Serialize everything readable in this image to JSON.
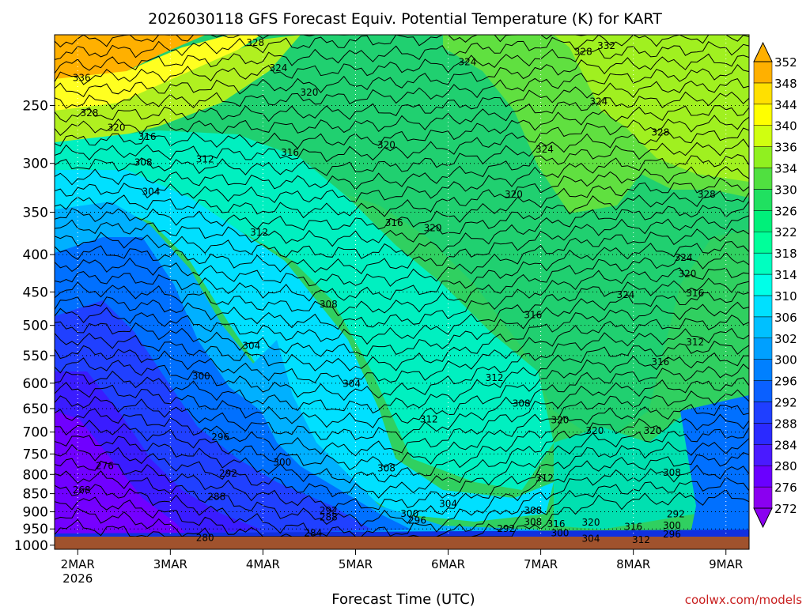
{
  "chart_data": {
    "type": "heatmap",
    "title": "2026030118 GFS Forecast Equiv. Potential Temperature (K) for KART",
    "xlabel": "Forecast Time (UTC)",
    "ylabel": "",
    "y_axis": {
      "scale": "log",
      "inverted": true,
      "ticks": [
        250,
        300,
        350,
        400,
        450,
        500,
        550,
        600,
        650,
        700,
        750,
        800,
        850,
        900,
        950,
        1000
      ],
      "range": [
        200,
        1013
      ]
    },
    "x_axis": {
      "range": [
        0,
        180
      ],
      "ticks": [
        {
          "hour": 6,
          "label": "2MAR",
          "sublabel": "2026"
        },
        {
          "hour": 30,
          "label": "3MAR"
        },
        {
          "hour": 54,
          "label": "4MAR"
        },
        {
          "hour": 78,
          "label": "5MAR"
        },
        {
          "hour": 102,
          "label": "6MAR"
        },
        {
          "hour": 126,
          "label": "7MAR"
        },
        {
          "hour": 150,
          "label": "8MAR"
        },
        {
          "hour": 174,
          "label": "9MAR"
        }
      ]
    },
    "grid": true,
    "colorbar": {
      "levels": [
        272,
        276,
        280,
        284,
        288,
        292,
        296,
        300,
        302,
        306,
        310,
        314,
        318,
        322,
        326,
        330,
        334,
        336,
        340,
        344,
        348,
        352
      ],
      "colors": [
        "#8a00f0",
        "#6a00ff",
        "#4a1aff",
        "#2a2aff",
        "#1f3fff",
        "#0a60ff",
        "#0080ff",
        "#00a0ff",
        "#00c0ff",
        "#00e0ff",
        "#00ffe8",
        "#00ffc0",
        "#00ff9a",
        "#00f07a",
        "#20e060",
        "#50e040",
        "#90f020",
        "#d0ff10",
        "#ffff00",
        "#ffe000",
        "#ffb000"
      ]
    },
    "contour_labels": [
      {
        "value": "328",
        "hour": 52,
        "p": 205
      },
      {
        "value": "324",
        "hour": 58,
        "p": 222
      },
      {
        "value": "320",
        "hour": 66,
        "p": 240
      },
      {
        "value": "336",
        "hour": 7,
        "p": 229
      },
      {
        "value": "328",
        "hour": 9,
        "p": 256
      },
      {
        "value": "320",
        "hour": 16,
        "p": 268
      },
      {
        "value": "316",
        "hour": 24,
        "p": 276
      },
      {
        "value": "316",
        "hour": 61,
        "p": 290
      },
      {
        "value": "312",
        "hour": 39,
        "p": 296
      },
      {
        "value": "308",
        "hour": 23,
        "p": 299
      },
      {
        "value": "304",
        "hour": 25,
        "p": 328
      },
      {
        "value": "312",
        "hour": 53,
        "p": 373
      },
      {
        "value": "316",
        "hour": 88,
        "p": 362
      },
      {
        "value": "320",
        "hour": 98,
        "p": 368
      },
      {
        "value": "320",
        "hour": 86,
        "p": 283
      },
      {
        "value": "324",
        "hour": 107,
        "p": 218
      },
      {
        "value": "328",
        "hour": 137,
        "p": 211
      },
      {
        "value": "332",
        "hour": 143,
        "p": 207
      },
      {
        "value": "324",
        "hour": 127,
        "p": 287
      },
      {
        "value": "320",
        "hour": 119,
        "p": 331
      },
      {
        "value": "324",
        "hour": 141,
        "p": 247
      },
      {
        "value": "328",
        "hour": 157,
        "p": 272
      },
      {
        "value": "328",
        "hour": 169,
        "p": 331
      },
      {
        "value": "324",
        "hour": 163,
        "p": 404
      },
      {
        "value": "320",
        "hour": 164,
        "p": 425
      },
      {
        "value": "316",
        "hour": 166,
        "p": 452
      },
      {
        "value": "324",
        "hour": 148,
        "p": 454
      },
      {
        "value": "312",
        "hour": 166,
        "p": 527
      },
      {
        "value": "316",
        "hour": 157,
        "p": 561
      },
      {
        "value": "316",
        "hour": 124,
        "p": 484
      },
      {
        "value": "308",
        "hour": 71,
        "p": 468
      },
      {
        "value": "304",
        "hour": 51,
        "p": 533
      },
      {
        "value": "304",
        "hour": 77,
        "p": 601
      },
      {
        "value": "300",
        "hour": 38,
        "p": 587
      },
      {
        "value": "312",
        "hour": 114,
        "p": 590
      },
      {
        "value": "312",
        "hour": 97,
        "p": 672
      },
      {
        "value": "308",
        "hour": 121,
        "p": 640
      },
      {
        "value": "320",
        "hour": 131,
        "p": 674
      },
      {
        "value": "320",
        "hour": 140,
        "p": 697
      },
      {
        "value": "320",
        "hour": 155,
        "p": 697
      },
      {
        "value": "296",
        "hour": 43,
        "p": 711
      },
      {
        "value": "300",
        "hour": 59,
        "p": 770
      },
      {
        "value": "292",
        "hour": 45,
        "p": 797
      },
      {
        "value": "308",
        "hour": 86,
        "p": 785
      },
      {
        "value": "312",
        "hour": 127,
        "p": 809
      },
      {
        "value": "308",
        "hour": 160,
        "p": 795
      },
      {
        "value": "276",
        "hour": 13,
        "p": 779
      },
      {
        "value": "268",
        "hour": 7,
        "p": 840
      },
      {
        "value": "288",
        "hour": 42,
        "p": 858
      },
      {
        "value": "304",
        "hour": 102,
        "p": 878
      },
      {
        "value": "308",
        "hour": 124,
        "p": 897
      },
      {
        "value": "292",
        "hour": 71,
        "p": 896
      },
      {
        "value": "288",
        "hour": 71,
        "p": 916
      },
      {
        "value": "300",
        "hour": 92,
        "p": 906
      },
      {
        "value": "296",
        "hour": 94,
        "p": 925
      },
      {
        "value": "308",
        "hour": 124,
        "p": 929
      },
      {
        "value": "316",
        "hour": 130,
        "p": 935
      },
      {
        "value": "320",
        "hour": 139,
        "p": 931
      },
      {
        "value": "316",
        "hour": 150,
        "p": 944
      },
      {
        "value": "300",
        "hour": 160,
        "p": 940
      },
      {
        "value": "292",
        "hour": 161,
        "p": 907
      },
      {
        "value": "292",
        "hour": 117,
        "p": 950
      },
      {
        "value": "300",
        "hour": 131,
        "p": 963
      },
      {
        "value": "296",
        "hour": 160,
        "p": 966
      },
      {
        "value": "284",
        "hour": 67,
        "p": 963
      },
      {
        "value": "280",
        "hour": 39,
        "p": 977
      },
      {
        "value": "304",
        "hour": 139,
        "p": 979
      },
      {
        "value": "312",
        "hour": 152,
        "p": 983
      }
    ]
  },
  "credit": "coolwx.com/models",
  "colors": {
    "ground": "#a0522d",
    "frame": "#000000",
    "credit": "#c81e1e"
  }
}
